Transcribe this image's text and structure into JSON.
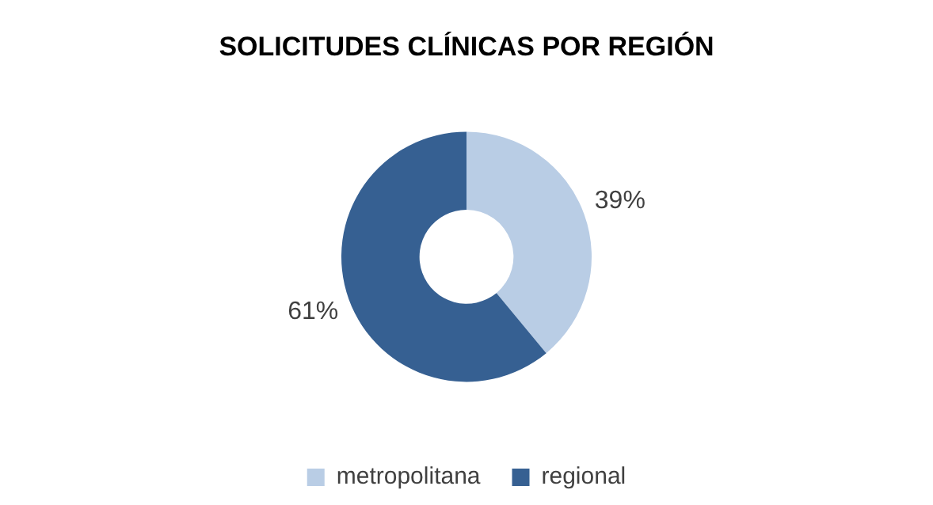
{
  "chart_data": {
    "type": "donut",
    "title": "SOLICITUDES CLÍNICAS POR REGIÓN",
    "categories": [
      "metropolitana",
      "regional"
    ],
    "values": [
      39,
      61
    ],
    "colors": [
      "#b9cde5",
      "#366092"
    ],
    "value_labels": [
      "39%",
      "61%"
    ],
    "legend": "bottom"
  }
}
